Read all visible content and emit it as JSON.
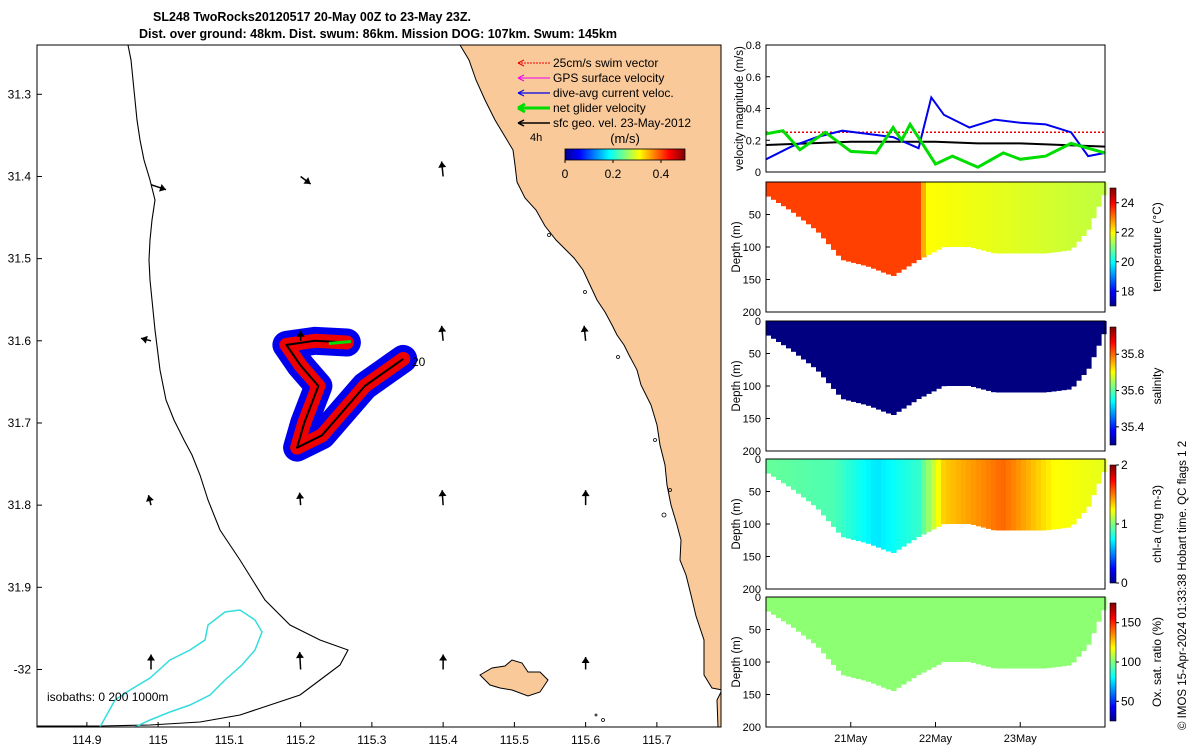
{
  "title": {
    "line1": "SL248 TwoRocks20120517 20-May 00Z to 23-May 23Z.",
    "line2": "Dist. over ground: 48km. Dist. swum: 86km. Mission DOG: 107km. Swum: 145km"
  },
  "credit": "© IMOS 15-Apr-2024 01:33:38 Hobart time. QC flags 1  2",
  "colors": {
    "land": "#f9c99a",
    "coast": "#000000",
    "isobath_200": "#33dddd",
    "swim_vector": "#ee0000",
    "gps_velocity": "#ee00ee",
    "dive_avg_current": "#0000ee",
    "net_glider": "#00dd00",
    "sfc_geo": "#000000"
  },
  "chart_data": [
    {
      "type": "map",
      "xlim": [
        114.83,
        115.79
      ],
      "ylim": [
        -32.07,
        -31.24
      ],
      "x_ticks": [
        "114.9",
        "115",
        "115.1",
        "115.2",
        "115.3",
        "115.4",
        "115.5",
        "115.6",
        "115.7"
      ],
      "y_ticks": [
        "31.3",
        "31.4",
        "31.5",
        "31.6",
        "31.7",
        "31.8",
        "31.9",
        "-32"
      ],
      "legend": [
        "25cm/s swim vector",
        "GPS surface velocity",
        "dive-avg current veloc.",
        "net glider velocity",
        "sfc geo. vel. 23-May-2012"
      ],
      "colorbar_label": "(m/s)",
      "colorbar_ticks": [
        "0",
        "0.2",
        "0.4"
      ],
      "colorbar_range": [
        0,
        0.5
      ],
      "track_start_label": "20",
      "track_end_label": "4h",
      "isobaths_label": "isobaths: 0   200  1000m",
      "track": [
        {
          "lon": 115.344,
          "lat": -31.622
        },
        {
          "lon": 115.29,
          "lat": -31.655
        },
        {
          "lon": 115.23,
          "lat": -31.715
        },
        {
          "lon": 115.195,
          "lat": -31.73
        },
        {
          "lon": 115.205,
          "lat": -31.7
        },
        {
          "lon": 115.225,
          "lat": -31.655
        },
        {
          "lon": 115.2,
          "lat": -31.63
        },
        {
          "lon": 115.18,
          "lat": -31.605
        },
        {
          "lon": 115.22,
          "lat": -31.6
        },
        {
          "lon": 115.265,
          "lat": -31.602
        }
      ],
      "sfc_geo_vectors": [
        {
          "lon": 114.99,
          "lat": -31.41,
          "u": 0.03,
          "v": -0.01
        },
        {
          "lon": 115.2,
          "lat": -31.4,
          "u": 0.02,
          "v": -0.015
        },
        {
          "lon": 115.4,
          "lat": -31.4,
          "u": -0.003,
          "v": 0.03
        },
        {
          "lon": 114.99,
          "lat": -31.6,
          "u": -0.02,
          "v": 0.005
        },
        {
          "lon": 115.2,
          "lat": -31.6,
          "u": 0.0,
          "v": 0.02
        },
        {
          "lon": 115.4,
          "lat": -31.6,
          "u": -0.003,
          "v": 0.03
        },
        {
          "lon": 115.6,
          "lat": -31.6,
          "u": -0.003,
          "v": 0.03
        },
        {
          "lon": 114.99,
          "lat": -31.8,
          "u": -0.005,
          "v": 0.02
        },
        {
          "lon": 115.2,
          "lat": -31.8,
          "u": -0.002,
          "v": 0.025
        },
        {
          "lon": 115.4,
          "lat": -31.8,
          "u": -0.002,
          "v": 0.03
        },
        {
          "lon": 115.6,
          "lat": -31.8,
          "u": 0.0,
          "v": 0.03
        },
        {
          "lon": 114.99,
          "lat": -32.0,
          "u": 0.0,
          "v": 0.03
        },
        {
          "lon": 115.2,
          "lat": -32.0,
          "u": -0.002,
          "v": 0.035
        },
        {
          "lon": 115.4,
          "lat": -32.0,
          "u": 0.0,
          "v": 0.03
        },
        {
          "lon": 115.6,
          "lat": -32.0,
          "u": 0.0,
          "v": 0.025
        }
      ]
    },
    {
      "type": "line",
      "ylabel": "velocity magnitude (m/s)",
      "ylim": [
        0,
        0.8
      ],
      "y_ticks": [
        "0",
        "0.2",
        "0.4",
        "0.6",
        "0.8"
      ],
      "x_range_days": [
        20,
        24
      ],
      "series": [
        {
          "color": "#ee0000",
          "style": "dotted",
          "x": [
            20.0,
            24.0
          ],
          "values": [
            0.25,
            0.25
          ]
        },
        {
          "color": "#000000",
          "x": [
            20.0,
            20.5,
            21.0,
            21.5,
            22.0,
            22.5,
            23.0,
            23.5,
            24.0
          ],
          "values": [
            0.17,
            0.18,
            0.19,
            0.19,
            0.19,
            0.18,
            0.18,
            0.17,
            0.16
          ]
        },
        {
          "color": "#0000ee",
          "x": [
            20.0,
            20.3,
            20.6,
            20.9,
            21.2,
            21.5,
            21.8,
            21.95,
            22.1,
            22.4,
            22.7,
            23.0,
            23.3,
            23.6,
            23.8,
            24.0
          ],
          "values": [
            0.08,
            0.16,
            0.22,
            0.26,
            0.24,
            0.22,
            0.15,
            0.47,
            0.36,
            0.28,
            0.33,
            0.31,
            0.3,
            0.25,
            0.1,
            0.12
          ]
        },
        {
          "color": "#00dd00",
          "x": [
            20.0,
            20.2,
            20.4,
            20.7,
            21.0,
            21.3,
            21.5,
            21.6,
            21.7,
            22.0,
            22.2,
            22.5,
            22.8,
            23.0,
            23.3,
            23.6,
            24.0
          ],
          "values": [
            0.24,
            0.26,
            0.14,
            0.25,
            0.13,
            0.12,
            0.28,
            0.2,
            0.3,
            0.05,
            0.1,
            0.03,
            0.12,
            0.08,
            0.1,
            0.18,
            0.12
          ]
        }
      ]
    },
    {
      "type": "heatmap",
      "ylabel": "Depth (m)",
      "clabel": "temperature (°C)",
      "ylim": [
        200,
        0
      ],
      "y_ticks": [
        "50",
        "100",
        "150",
        "200"
      ],
      "c_ticks": [
        "18",
        "20",
        "22",
        "24"
      ],
      "crange": [
        17,
        25
      ],
      "profile": {
        "x": [
          20.0,
          20.3,
          20.6,
          20.9,
          21.2,
          21.5,
          21.8,
          22.1,
          22.4,
          22.7,
          23.0,
          23.3,
          23.6,
          23.8,
          24.0
        ],
        "depth": [
          20,
          45,
          75,
          120,
          130,
          145,
          120,
          100,
          100,
          110,
          110,
          110,
          105,
          75,
          15
        ]
      },
      "value_x": [
        20.0,
        21.8,
        21.9,
        24.0
      ],
      "values": [
        23.5,
        23.5,
        22.0,
        21.5
      ]
    },
    {
      "type": "heatmap",
      "ylabel": "Depth (m)",
      "clabel": "salinity",
      "ylim": [
        200,
        0
      ],
      "y_ticks": [
        "0",
        "50",
        "100",
        "150",
        "200"
      ],
      "c_ticks": [
        "35.4",
        "35.6",
        "35.8"
      ],
      "crange": [
        35.3,
        35.95
      ],
      "profile": {
        "x": [
          20.0,
          20.3,
          20.6,
          20.9,
          21.2,
          21.5,
          21.8,
          22.1,
          22.4,
          22.7,
          23.0,
          23.3,
          23.6,
          23.8,
          24.0
        ],
        "depth": [
          20,
          45,
          75,
          120,
          130,
          145,
          120,
          100,
          100,
          110,
          110,
          110,
          105,
          75,
          15
        ]
      },
      "value_x": [
        20.0,
        24.0
      ],
      "values": [
        35.3,
        35.3
      ]
    },
    {
      "type": "heatmap",
      "ylabel": "Depth (m)",
      "clabel": "chl-a (mg m-3)",
      "ylim": [
        200,
        0
      ],
      "y_ticks": [
        "0",
        "50",
        "100",
        "150",
        "200"
      ],
      "c_ticks": [
        "0",
        "1",
        "2"
      ],
      "crange": [
        0,
        2
      ],
      "profile": {
        "x": [
          20.0,
          20.3,
          20.6,
          20.9,
          21.2,
          21.5,
          21.8,
          22.1,
          22.4,
          22.7,
          23.0,
          23.3,
          23.6,
          23.8,
          24.0
        ],
        "depth": [
          20,
          45,
          75,
          120,
          130,
          145,
          120,
          100,
          100,
          110,
          110,
          110,
          105,
          75,
          15
        ]
      },
      "value_x": [
        20.0,
        20.8,
        21.3,
        21.8,
        22.1,
        22.8,
        23.4,
        24.0
      ],
      "values": [
        0.95,
        0.9,
        0.7,
        0.85,
        1.35,
        1.55,
        1.25,
        1.2
      ]
    },
    {
      "type": "heatmap",
      "ylabel": "Depth (m)",
      "clabel": "Ox. sat. ratio (%)",
      "ylim": [
        200,
        0
      ],
      "y_ticks": [
        "0",
        "50",
        "100",
        "150",
        "200"
      ],
      "c_ticks": [
        "50",
        "100",
        "150"
      ],
      "crange": [
        25,
        175
      ],
      "profile": {
        "x": [
          20.0,
          20.3,
          20.6,
          20.9,
          21.2,
          21.5,
          21.8,
          22.1,
          22.4,
          22.7,
          23.0,
          23.3,
          23.6,
          23.8,
          24.0
        ],
        "depth": [
          20,
          45,
          75,
          120,
          130,
          145,
          120,
          100,
          100,
          110,
          110,
          110,
          105,
          75,
          15
        ]
      },
      "value_x": [
        20.0,
        24.0
      ],
      "values": [
        102,
        102
      ],
      "x_ticks": [
        "21May",
        "22May",
        "23May"
      ]
    }
  ]
}
